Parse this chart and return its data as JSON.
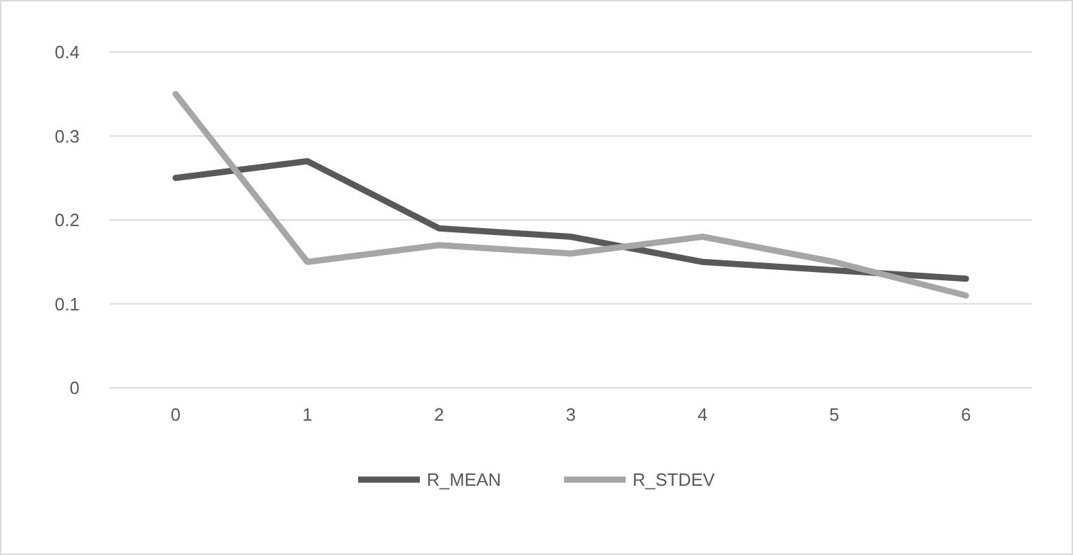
{
  "chart_data": {
    "type": "line",
    "categories": [
      "0",
      "1",
      "2",
      "3",
      "4",
      "5",
      "6"
    ],
    "series": [
      {
        "name": "R_MEAN",
        "color": "#595959",
        "values": [
          0.25,
          0.27,
          0.19,
          0.18,
          0.15,
          0.14,
          0.13
        ]
      },
      {
        "name": "R_STDEV",
        "color": "#a6a6a6",
        "values": [
          0.35,
          0.15,
          0.17,
          0.16,
          0.18,
          0.15,
          0.11
        ]
      }
    ],
    "ylim": [
      0,
      0.4
    ],
    "yticks": [
      0,
      0.1,
      0.2,
      0.3,
      0.4
    ],
    "grid": "y",
    "legend": "bottom",
    "marker": "none",
    "line_style": "solid"
  }
}
